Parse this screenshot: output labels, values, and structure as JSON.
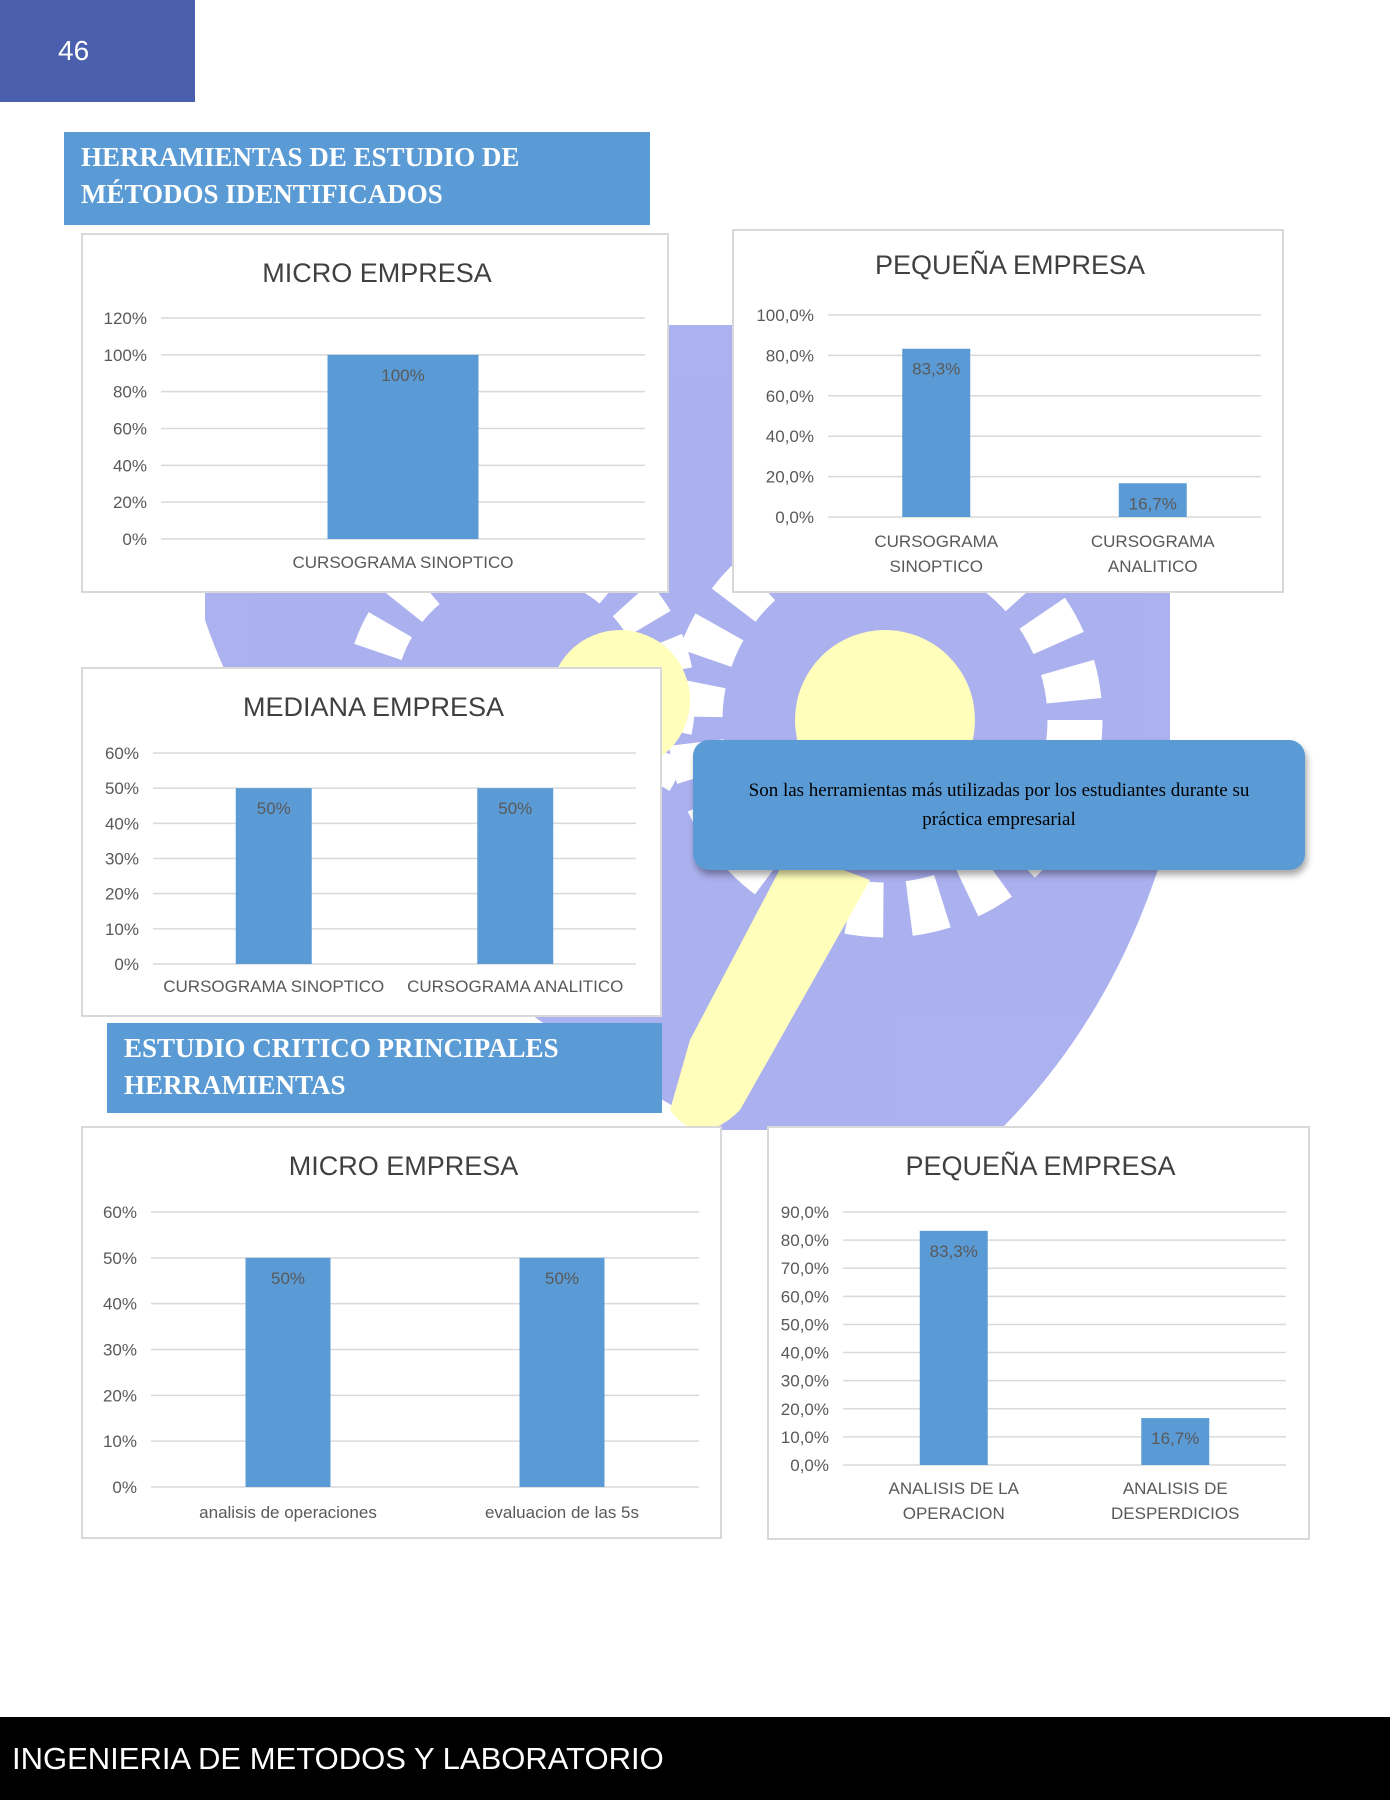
{
  "page": {
    "number": "46",
    "footer": "INGENIERIA DE METODOS Y LABORATORIO"
  },
  "sections": [
    {
      "title_line1": "HERRAMIENTAS DE ESTUDIO DE",
      "title_line2": "MÉTODOS IDENTIFICADOS"
    },
    {
      "title_line1": "ESTUDIO CRITICO PRINCIPALES",
      "title_line2": "HERRAMIENTAS"
    }
  ],
  "note": {
    "text": "Son las herramientas más utilizadas por los estudiantes durante su práctica empresarial"
  },
  "colors": {
    "bar": "#5b9bd5",
    "grid": "#d9d9d9",
    "banner": "#5b9bd5",
    "page_number_bg": "#4a5fad"
  },
  "chart_data": [
    {
      "type": "bar",
      "title": "MICRO EMPRESA",
      "categories": [
        [
          "CURSOGRAMA SINOPTICO"
        ]
      ],
      "values": [
        100
      ],
      "labels": [
        "100%"
      ],
      "ylim": [
        0,
        120
      ],
      "yticks": [
        "0%",
        "20%",
        "40%",
        "60%",
        "80%",
        "100%",
        "120%"
      ],
      "grid": true
    },
    {
      "type": "bar",
      "title": "PEQUEÑA EMPRESA",
      "categories": [
        [
          "CURSOGRAMA",
          "SINOPTICO"
        ],
        [
          "CURSOGRAMA",
          "ANALITICO"
        ]
      ],
      "values": [
        83.3,
        16.7
      ],
      "labels": [
        "83,3%",
        "16,7%"
      ],
      "ylim": [
        0,
        100
      ],
      "yticks": [
        "0,0%",
        "20,0%",
        "40,0%",
        "60,0%",
        "80,0%",
        "100,0%"
      ],
      "grid": true
    },
    {
      "type": "bar",
      "title": "MEDIANA EMPRESA",
      "categories": [
        [
          "CURSOGRAMA SINOPTICO"
        ],
        [
          "CURSOGRAMA ANALITICO"
        ]
      ],
      "values": [
        50,
        50
      ],
      "labels": [
        "50%",
        "50%"
      ],
      "ylim": [
        0,
        60
      ],
      "yticks": [
        "0%",
        "10%",
        "20%",
        "30%",
        "40%",
        "50%",
        "60%"
      ],
      "grid": true
    },
    {
      "type": "bar",
      "title": "MICRO EMPRESA",
      "categories": [
        [
          "analisis de operaciones"
        ],
        [
          "evaluacion de las 5s"
        ]
      ],
      "values": [
        50,
        50
      ],
      "labels": [
        "50%",
        "50%"
      ],
      "ylim": [
        0,
        60
      ],
      "yticks": [
        "0%",
        "10%",
        "20%",
        "30%",
        "40%",
        "50%",
        "60%"
      ],
      "grid": true
    },
    {
      "type": "bar",
      "title": "PEQUEÑA EMPRESA",
      "categories": [
        [
          "ANALISIS DE LA",
          "OPERACION"
        ],
        [
          "ANALISIS DE",
          "DESPERDICIOS"
        ]
      ],
      "values": [
        83.3,
        16.7
      ],
      "labels": [
        "83,3%",
        "16,7%"
      ],
      "ylim": [
        0,
        90
      ],
      "yticks": [
        "0,0%",
        "10,0%",
        "20,0%",
        "30,0%",
        "40,0%",
        "50,0%",
        "60,0%",
        "70,0%",
        "80,0%",
        "90,0%"
      ],
      "grid": true
    }
  ]
}
